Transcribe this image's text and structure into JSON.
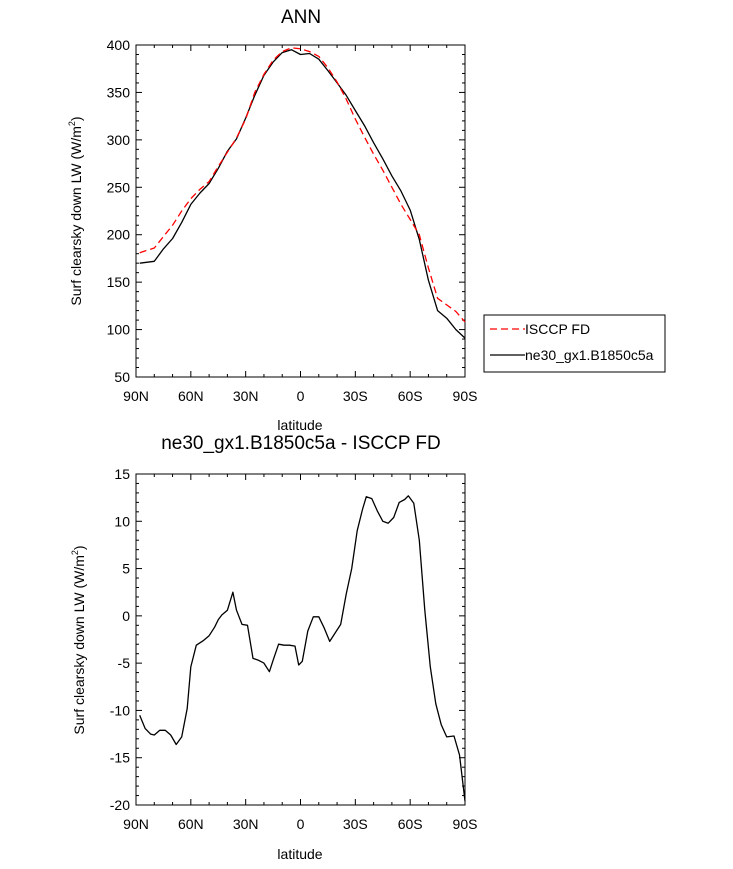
{
  "chart_data": [
    {
      "type": "line",
      "title": "ANN",
      "xlabel": "latitude",
      "ylabel": "Surf clearsky down LW (W/m",
      "ylabel_sup": "2",
      "ylabel_close": ")",
      "xlim": [
        90,
        -90
      ],
      "ylim": [
        50,
        400
      ],
      "x_ticks": [
        90,
        60,
        30,
        0,
        -30,
        -60,
        -90
      ],
      "x_tick_labels": [
        "90N",
        "60N",
        "30N",
        "0",
        "30S",
        "60S",
        "90S"
      ],
      "y_ticks": [
        50,
        100,
        150,
        200,
        250,
        300,
        350,
        400
      ],
      "y_tick_labels": [
        "50",
        "100",
        "150",
        "200",
        "250",
        "300",
        "350",
        "400"
      ],
      "legend": [
        "ISCCP FD",
        "ne30_gx1.B1850c5a"
      ],
      "series": [
        {
          "name": "ne30_gx1.B1850c5a",
          "color": "#000000",
          "dash": "solid",
          "x": [
            88,
            80,
            75,
            70,
            65,
            60,
            55,
            50,
            45,
            40,
            35,
            30,
            25,
            20,
            15,
            10,
            5,
            0,
            -5,
            -10,
            -15,
            -20,
            -25,
            -30,
            -35,
            -40,
            -45,
            -50,
            -55,
            -60,
            -65,
            -70,
            -75,
            -80,
            -85,
            -90
          ],
          "y": [
            170,
            172,
            185,
            196,
            213,
            232,
            244,
            254,
            270,
            288,
            301,
            323,
            347,
            368,
            382,
            392,
            395,
            390,
            391,
            385,
            373,
            360,
            347,
            331,
            315,
            297,
            280,
            262,
            246,
            226,
            195,
            152,
            120,
            112,
            100,
            91
          ]
        },
        {
          "name": "ISCCP FD",
          "color": "#ff0000",
          "dash": "dashed",
          "x": [
            88,
            80,
            75,
            70,
            65,
            60,
            55,
            50,
            45,
            40,
            35,
            30,
            25,
            20,
            15,
            10,
            5,
            0,
            -5,
            -10,
            -15,
            -20,
            -25,
            -30,
            -35,
            -40,
            -45,
            -50,
            -55,
            -60,
            -65,
            -70,
            -75,
            -80,
            -85,
            -90
          ],
          "y": [
            181,
            186,
            198,
            210,
            225,
            238,
            248,
            256,
            272,
            287,
            302,
            322,
            350,
            369,
            384,
            393,
            397,
            396,
            393,
            388,
            376,
            361,
            343,
            322,
            303,
            285,
            268,
            250,
            232,
            216,
            200,
            165,
            133,
            126,
            119,
            108
          ]
        }
      ]
    },
    {
      "type": "line",
      "title": "ne30_gx1.B1850c5a - ISCCP FD",
      "xlabel": "latitude",
      "ylabel": "Surf clearsky down LW (W/m",
      "ylabel_sup": "2",
      "ylabel_close": ")",
      "xlim": [
        90,
        -90
      ],
      "ylim": [
        -20,
        15
      ],
      "x_ticks": [
        90,
        60,
        30,
        0,
        -30,
        -60,
        -90
      ],
      "x_tick_labels": [
        "90N",
        "60N",
        "30N",
        "0",
        "30S",
        "60S",
        "90S"
      ],
      "y_ticks": [
        -20,
        -15,
        -10,
        -5,
        0,
        5,
        10,
        15
      ],
      "y_tick_labels": [
        "-20",
        "-15",
        "-10",
        "-5",
        "0",
        "5",
        "10",
        "15"
      ],
      "series": [
        {
          "name": "ne30_gx1.B1850c5a - ISCCP FD",
          "color": "#000000",
          "dash": "solid",
          "x": [
            88,
            85,
            82,
            80,
            77,
            74,
            71,
            68,
            65,
            62,
            60,
            57,
            53,
            50,
            47,
            45,
            43,
            40,
            37,
            35,
            32,
            29,
            26,
            23,
            20,
            17,
            15,
            12,
            9,
            6,
            3,
            1,
            -1,
            -4,
            -7,
            -10,
            -13,
            -16,
            -19,
            -22,
            -25,
            -28,
            -31,
            -34,
            -36,
            -39,
            -42,
            -45,
            -48,
            -51,
            -54,
            -57,
            -59,
            -62,
            -65,
            -68,
            -71,
            -74,
            -77,
            -80,
            -84,
            -87,
            -90
          ],
          "y": [
            -10.5,
            -11.9,
            -12.5,
            -12.6,
            -12.1,
            -12.1,
            -12.6,
            -13.6,
            -12.8,
            -9.8,
            -5.4,
            -3.1,
            -2.6,
            -2.1,
            -1.2,
            -0.4,
            0.1,
            0.6,
            2.5,
            0.6,
            -0.9,
            -1.0,
            -4.5,
            -4.7,
            -5.0,
            -5.9,
            -4.7,
            -3.0,
            -3.1,
            -3.1,
            -3.2,
            -5.2,
            -4.8,
            -1.6,
            -0.1,
            -0.1,
            -1.3,
            -2.7,
            -1.8,
            -0.9,
            2.3,
            5.0,
            9.0,
            11.3,
            12.6,
            12.4,
            11.1,
            10.0,
            9.8,
            10.4,
            12.0,
            12.3,
            12.7,
            11.9,
            8.0,
            0.6,
            -5.4,
            -9.3,
            -11.5,
            -12.8,
            -12.7,
            -14.7,
            -19.6
          ]
        }
      ]
    }
  ]
}
